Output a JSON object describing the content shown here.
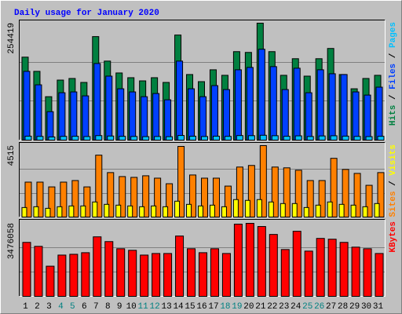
{
  "title": "Daily usage for January 2020",
  "legend_separator": " / ",
  "categories": [
    "1",
    "2",
    "3",
    "4",
    "5",
    "6",
    "7",
    "8",
    "9",
    "10",
    "11",
    "12",
    "13",
    "14",
    "15",
    "16",
    "17",
    "18",
    "19",
    "20",
    "21",
    "22",
    "23",
    "24",
    "25",
    "26",
    "27",
    "28",
    "29",
    "30",
    "31"
  ],
  "category_colors": [
    "#000000",
    "#000000",
    "#000000",
    "#008080",
    "#008080",
    "#000000",
    "#000000",
    "#000000",
    "#000000",
    "#000000",
    "#008080",
    "#008080",
    "#000000",
    "#000000",
    "#000000",
    "#000000",
    "#000000",
    "#008080",
    "#008080",
    "#000000",
    "#000000",
    "#000000",
    "#000000",
    "#000000",
    "#008080",
    "#008080",
    "#000000",
    "#000000",
    "#000000",
    "#000000",
    "#000000"
  ],
  "chart_data": [
    {
      "type": "bar",
      "ylim": [
        0,
        254419
      ],
      "yticks": [
        254419
      ],
      "series": [
        {
          "name": "Hits",
          "color": "#008040",
          "values": [
            180500,
            149600,
            94500,
            130600,
            134100,
            125500,
            225200,
            171900,
            146100,
            135800,
            128900,
            135800,
            125500,
            228600,
            142700,
            127200,
            153000,
            141000,
            192500,
            190800,
            254419,
            192500,
            141000,
            177100,
            139200,
            177100,
            199400,
            142700,
            111700,
            134100,
            141000
          ]
        },
        {
          "name": "Files",
          "color": "#0040ff",
          "values": [
            149600,
            120300,
            61900,
            103100,
            104900,
            96300,
            166700,
            139200,
            111700,
            104900,
            94500,
            101400,
            87700,
            171900,
            111700,
            94500,
            118600,
            110000,
            153000,
            158100,
            197700,
            159900,
            110000,
            156400,
            103100,
            153000,
            144400,
            142700,
            104900,
            98000,
            115200
          ]
        },
        {
          "name": "Pages",
          "color": "#00c0ff",
          "values": [
            8600,
            8100,
            6900,
            8200,
            8400,
            7800,
            9800,
            8900,
            8300,
            8000,
            7600,
            7900,
            7500,
            10100,
            8500,
            7900,
            8600,
            8200,
            9900,
            9700,
            10600,
            9600,
            8400,
            9300,
            7900,
            9100,
            9500,
            8700,
            8100,
            7700,
            8300
          ]
        }
      ]
    },
    {
      "type": "bar",
      "ylim": [
        0,
        4515
      ],
      "yticks": [
        4515
      ],
      "series": [
        {
          "name": "Sites",
          "color": "#ff8000",
          "values": [
            2208,
            2208,
            1906,
            2208,
            2308,
            1906,
            3913,
            2810,
            2559,
            2508,
            2609,
            2458,
            2107,
            4465,
            2659,
            2458,
            2458,
            1957,
            3161,
            3261,
            4515,
            3161,
            3111,
            2960,
            2308,
            2308,
            3712,
            3010,
            2759,
            2007,
            2810
          ]
        },
        {
          "name": "Visits",
          "color": "#ffff00",
          "values": [
            602,
            652,
            552,
            652,
            702,
            702,
            953,
            803,
            753,
            702,
            652,
            702,
            652,
            1003,
            803,
            702,
            753,
            652,
            1104,
            1054,
            1104,
            953,
            853,
            853,
            602,
            753,
            953,
            803,
            753,
            652,
            853
          ]
        }
      ]
    },
    {
      "type": "bar",
      "ylim": [
        0,
        3476058
      ],
      "yticks": [
        3476058
      ],
      "series": [
        {
          "name": "KBytes",
          "color": "#ff0000",
          "values": [
            2569200,
            2380300,
            1435800,
            1964700,
            2002500,
            2078100,
            2833700,
            2607000,
            2267000,
            2191400,
            1964700,
            2040300,
            2040300,
            2871500,
            2267000,
            2078100,
            2267000,
            2040300,
            3438300,
            3476058,
            3324900,
            2947100,
            2229200,
            3098200,
            2153600,
            2758200,
            2720400,
            2569200,
            2342500,
            2267000,
            2040300
          ]
        }
      ]
    }
  ]
}
